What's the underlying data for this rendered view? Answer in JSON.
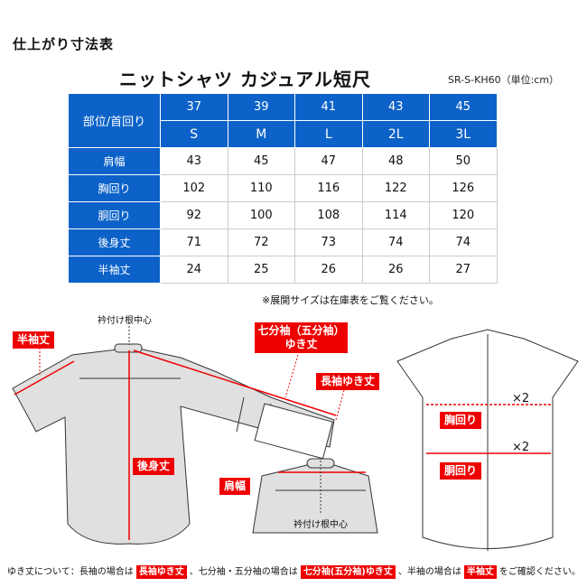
{
  "title": "仕上がり寸法表",
  "product_title": "ニットシャツ カジュアル短尺",
  "code_unit": "SR-S-KH60（単位:cm）",
  "table": {
    "corner": "部位/首回り",
    "neck_sizes": [
      "37",
      "39",
      "41",
      "43",
      "45"
    ],
    "size_labels": [
      "S",
      "M",
      "L",
      "2L",
      "3L"
    ],
    "rows": [
      {
        "label": "肩幅",
        "values": [
          "43",
          "45",
          "47",
          "48",
          "50"
        ]
      },
      {
        "label": "胸回り",
        "values": [
          "102",
          "110",
          "116",
          "122",
          "126"
        ]
      },
      {
        "label": "胴回り",
        "values": [
          "92",
          "100",
          "108",
          "114",
          "120"
        ]
      },
      {
        "label": "後身丈",
        "values": [
          "71",
          "72",
          "73",
          "74",
          "74"
        ]
      },
      {
        "label": "半袖丈",
        "values": [
          "24",
          "25",
          "26",
          "26",
          "27"
        ]
      }
    ]
  },
  "note": "※展開サイズは在庫表をご覧ください。",
  "diagram": {
    "collar_center": "衿付け根中心",
    "half_sleeve": "半袖丈",
    "three_quarter_1": "七分袖（五分袖）",
    "three_quarter_2": "ゆき丈",
    "long_sleeve": "長袖ゆき丈",
    "back_length": "後身丈",
    "shoulder": "肩幅",
    "collar_center_2": "衿付け根中心",
    "chest": "胸回り",
    "waist": "胴回り",
    "times2_a": "×2",
    "times2_b": "×2"
  },
  "footer": {
    "t1": "ゆき丈について：長袖の場合は",
    "tag1": "長袖ゆき丈",
    "t2": "、七分袖・五分袖の場合は",
    "tag2": "七分袖(五分袖)ゆき丈",
    "t3": "、半袖の場合は",
    "tag3": "半袖丈",
    "t4": "をご確認ください。"
  },
  "colors": {
    "header_blue": "#0c62c8",
    "accent_red": "#e00000",
    "shirt_gray": "#e0e0e0"
  }
}
